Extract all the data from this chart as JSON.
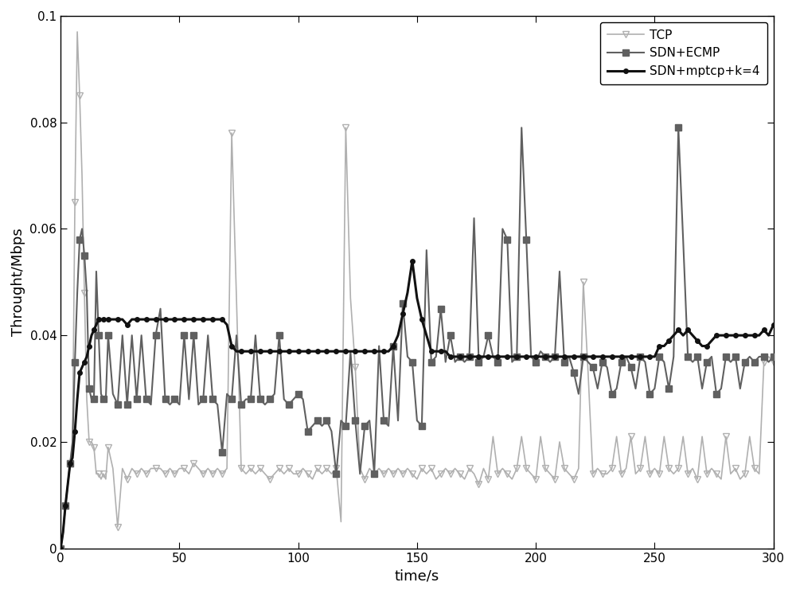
{
  "xlabel": "time/s",
  "ylabel": "Throught/Mbps",
  "xlim": [
    0,
    300
  ],
  "ylim": [
    0,
    0.1
  ],
  "yticks": [
    0,
    0.02,
    0.04,
    0.06,
    0.08,
    0.1
  ],
  "xticks": [
    0,
    50,
    100,
    150,
    200,
    250,
    300
  ],
  "tcp_color": "#b0b0b0",
  "ecmp_color": "#606060",
  "mptcp_color": "#111111",
  "legend_labels": [
    "TCP",
    "SDN+ECMP",
    "SDN+mptcp+k=4"
  ],
  "tcp_t": [
    0,
    1,
    2,
    3,
    4,
    5,
    6,
    7,
    8,
    9,
    10,
    11,
    12,
    13,
    14,
    15,
    16,
    17,
    18,
    19,
    20,
    22,
    24,
    26,
    28,
    30,
    32,
    34,
    36,
    38,
    40,
    42,
    44,
    46,
    48,
    50,
    52,
    54,
    56,
    58,
    60,
    62,
    64,
    66,
    68,
    70,
    72,
    74,
    76,
    78,
    80,
    82,
    84,
    86,
    88,
    90,
    92,
    94,
    96,
    98,
    100,
    102,
    104,
    106,
    108,
    110,
    112,
    114,
    116,
    118,
    120,
    122,
    124,
    126,
    128,
    130,
    132,
    134,
    136,
    138,
    140,
    142,
    144,
    146,
    148,
    150,
    152,
    154,
    156,
    158,
    160,
    162,
    164,
    166,
    168,
    170,
    172,
    174,
    176,
    178,
    180,
    182,
    184,
    186,
    188,
    190,
    192,
    194,
    196,
    198,
    200,
    202,
    204,
    206,
    208,
    210,
    212,
    214,
    216,
    218,
    220,
    222,
    224,
    226,
    228,
    230,
    232,
    234,
    236,
    238,
    240,
    242,
    244,
    246,
    248,
    250,
    252,
    254,
    256,
    258,
    260,
    262,
    264,
    266,
    268,
    270,
    272,
    274,
    276,
    278,
    280,
    282,
    284,
    286,
    288,
    290,
    292,
    294,
    296,
    298,
    300
  ],
  "tcp_y": [
    0,
    0.003,
    0.008,
    0.012,
    0.016,
    0.02,
    0.065,
    0.097,
    0.085,
    0.07,
    0.048,
    0.028,
    0.02,
    0.02,
    0.019,
    0.014,
    0.014,
    0.013,
    0.014,
    0.013,
    0.019,
    0.015,
    0.004,
    0.015,
    0.013,
    0.015,
    0.014,
    0.015,
    0.014,
    0.015,
    0.015,
    0.015,
    0.014,
    0.015,
    0.014,
    0.015,
    0.015,
    0.014,
    0.016,
    0.015,
    0.014,
    0.015,
    0.014,
    0.015,
    0.014,
    0.015,
    0.078,
    0.047,
    0.015,
    0.014,
    0.015,
    0.014,
    0.015,
    0.014,
    0.013,
    0.014,
    0.015,
    0.014,
    0.015,
    0.014,
    0.014,
    0.015,
    0.014,
    0.013,
    0.015,
    0.014,
    0.015,
    0.014,
    0.015,
    0.005,
    0.079,
    0.047,
    0.034,
    0.015,
    0.013,
    0.015,
    0.014,
    0.015,
    0.014,
    0.015,
    0.014,
    0.015,
    0.014,
    0.015,
    0.014,
    0.013,
    0.015,
    0.014,
    0.015,
    0.013,
    0.014,
    0.015,
    0.014,
    0.015,
    0.014,
    0.013,
    0.015,
    0.014,
    0.012,
    0.015,
    0.013,
    0.021,
    0.014,
    0.015,
    0.014,
    0.013,
    0.015,
    0.021,
    0.015,
    0.014,
    0.013,
    0.021,
    0.015,
    0.014,
    0.013,
    0.02,
    0.015,
    0.014,
    0.013,
    0.015,
    0.05,
    0.033,
    0.014,
    0.015,
    0.014,
    0.014,
    0.015,
    0.021,
    0.014,
    0.015,
    0.021,
    0.014,
    0.015,
    0.021,
    0.014,
    0.015,
    0.014,
    0.021,
    0.015,
    0.014,
    0.015,
    0.021,
    0.014,
    0.015,
    0.013,
    0.021,
    0.014,
    0.015,
    0.014,
    0.013,
    0.021,
    0.014,
    0.015,
    0.013,
    0.014,
    0.021,
    0.015,
    0.014,
    0.035,
    0.036,
    0.035
  ],
  "ecmp_t": [
    0,
    1,
    2,
    3,
    4,
    5,
    6,
    7,
    8,
    9,
    10,
    11,
    12,
    13,
    14,
    15,
    16,
    17,
    18,
    19,
    20,
    22,
    24,
    26,
    28,
    30,
    32,
    34,
    36,
    38,
    40,
    42,
    44,
    46,
    48,
    50,
    52,
    54,
    56,
    58,
    60,
    62,
    64,
    66,
    68,
    70,
    72,
    74,
    76,
    78,
    80,
    82,
    84,
    86,
    88,
    90,
    92,
    94,
    96,
    98,
    100,
    102,
    104,
    106,
    108,
    110,
    112,
    114,
    116,
    118,
    120,
    122,
    124,
    126,
    128,
    130,
    132,
    134,
    136,
    138,
    140,
    142,
    144,
    146,
    148,
    150,
    152,
    154,
    156,
    158,
    160,
    162,
    164,
    166,
    168,
    170,
    172,
    174,
    176,
    178,
    180,
    182,
    184,
    186,
    188,
    190,
    192,
    194,
    196,
    198,
    200,
    202,
    204,
    206,
    208,
    210,
    212,
    214,
    216,
    218,
    220,
    222,
    224,
    226,
    228,
    230,
    232,
    234,
    236,
    238,
    240,
    242,
    244,
    246,
    248,
    250,
    252,
    254,
    256,
    258,
    260,
    262,
    264,
    266,
    268,
    270,
    272,
    274,
    276,
    278,
    280,
    282,
    284,
    286,
    288,
    290,
    292,
    294,
    296,
    298,
    300
  ],
  "ecmp_y": [
    0,
    0.003,
    0.008,
    0.012,
    0.016,
    0.02,
    0.035,
    0.048,
    0.058,
    0.06,
    0.055,
    0.048,
    0.03,
    0.028,
    0.028,
    0.052,
    0.04,
    0.029,
    0.028,
    0.028,
    0.04,
    0.029,
    0.027,
    0.04,
    0.027,
    0.04,
    0.028,
    0.04,
    0.028,
    0.027,
    0.04,
    0.045,
    0.028,
    0.027,
    0.028,
    0.027,
    0.04,
    0.028,
    0.04,
    0.027,
    0.028,
    0.04,
    0.028,
    0.027,
    0.018,
    0.029,
    0.028,
    0.04,
    0.027,
    0.028,
    0.028,
    0.04,
    0.028,
    0.027,
    0.028,
    0.029,
    0.04,
    0.028,
    0.027,
    0.028,
    0.029,
    0.028,
    0.022,
    0.023,
    0.024,
    0.023,
    0.024,
    0.022,
    0.014,
    0.024,
    0.023,
    0.037,
    0.024,
    0.014,
    0.023,
    0.024,
    0.014,
    0.038,
    0.024,
    0.023,
    0.038,
    0.024,
    0.046,
    0.036,
    0.035,
    0.024,
    0.023,
    0.056,
    0.035,
    0.036,
    0.045,
    0.035,
    0.04,
    0.035,
    0.036,
    0.035,
    0.036,
    0.062,
    0.035,
    0.036,
    0.04,
    0.036,
    0.035,
    0.06,
    0.058,
    0.035,
    0.036,
    0.079,
    0.058,
    0.036,
    0.035,
    0.037,
    0.036,
    0.035,
    0.036,
    0.052,
    0.035,
    0.036,
    0.033,
    0.029,
    0.036,
    0.035,
    0.034,
    0.03,
    0.035,
    0.034,
    0.029,
    0.03,
    0.035,
    0.036,
    0.034,
    0.03,
    0.036,
    0.035,
    0.029,
    0.03,
    0.036,
    0.035,
    0.03,
    0.036,
    0.079,
    0.058,
    0.036,
    0.035,
    0.036,
    0.03,
    0.035,
    0.036,
    0.029,
    0.03,
    0.036,
    0.035,
    0.036,
    0.03,
    0.035,
    0.036,
    0.035,
    0.036,
    0.036,
    0.035,
    0.036
  ],
  "mptcp_t": [
    0,
    1,
    2,
    3,
    4,
    5,
    6,
    7,
    8,
    9,
    10,
    11,
    12,
    13,
    14,
    15,
    16,
    17,
    18,
    19,
    20,
    22,
    24,
    26,
    28,
    30,
    32,
    34,
    36,
    38,
    40,
    42,
    44,
    46,
    48,
    50,
    52,
    54,
    56,
    58,
    60,
    62,
    64,
    66,
    68,
    70,
    72,
    74,
    76,
    78,
    80,
    82,
    84,
    86,
    88,
    90,
    92,
    94,
    96,
    98,
    100,
    102,
    104,
    106,
    108,
    110,
    112,
    114,
    116,
    118,
    120,
    122,
    124,
    126,
    128,
    130,
    132,
    134,
    136,
    138,
    140,
    142,
    144,
    146,
    148,
    150,
    152,
    154,
    156,
    158,
    160,
    162,
    164,
    166,
    168,
    170,
    172,
    174,
    176,
    178,
    180,
    182,
    184,
    186,
    188,
    190,
    192,
    194,
    196,
    198,
    200,
    202,
    204,
    206,
    208,
    210,
    212,
    214,
    216,
    218,
    220,
    222,
    224,
    226,
    228,
    230,
    232,
    234,
    236,
    238,
    240,
    242,
    244,
    246,
    248,
    250,
    252,
    254,
    256,
    258,
    260,
    262,
    264,
    266,
    268,
    270,
    272,
    274,
    276,
    278,
    280,
    282,
    284,
    286,
    288,
    290,
    292,
    294,
    296,
    298,
    300
  ],
  "mptcp_y": [
    0,
    0.003,
    0.008,
    0.012,
    0.016,
    0.017,
    0.022,
    0.028,
    0.033,
    0.034,
    0.035,
    0.036,
    0.038,
    0.04,
    0.041,
    0.042,
    0.043,
    0.043,
    0.043,
    0.043,
    0.043,
    0.043,
    0.043,
    0.043,
    0.042,
    0.043,
    0.043,
    0.043,
    0.043,
    0.043,
    0.043,
    0.043,
    0.043,
    0.043,
    0.043,
    0.043,
    0.043,
    0.043,
    0.043,
    0.043,
    0.043,
    0.043,
    0.043,
    0.043,
    0.043,
    0.042,
    0.038,
    0.037,
    0.037,
    0.037,
    0.037,
    0.037,
    0.037,
    0.037,
    0.037,
    0.037,
    0.037,
    0.037,
    0.037,
    0.037,
    0.037,
    0.037,
    0.037,
    0.037,
    0.037,
    0.037,
    0.037,
    0.037,
    0.037,
    0.037,
    0.037,
    0.037,
    0.037,
    0.037,
    0.037,
    0.037,
    0.037,
    0.037,
    0.037,
    0.037,
    0.038,
    0.04,
    0.044,
    0.048,
    0.054,
    0.047,
    0.043,
    0.04,
    0.037,
    0.037,
    0.037,
    0.037,
    0.036,
    0.036,
    0.036,
    0.036,
    0.036,
    0.036,
    0.036,
    0.036,
    0.036,
    0.036,
    0.036,
    0.036,
    0.036,
    0.036,
    0.036,
    0.036,
    0.036,
    0.036,
    0.036,
    0.036,
    0.036,
    0.036,
    0.036,
    0.036,
    0.036,
    0.036,
    0.036,
    0.036,
    0.036,
    0.036,
    0.036,
    0.036,
    0.036,
    0.036,
    0.036,
    0.036,
    0.036,
    0.036,
    0.036,
    0.036,
    0.036,
    0.036,
    0.036,
    0.036,
    0.038,
    0.038,
    0.039,
    0.04,
    0.041,
    0.04,
    0.041,
    0.04,
    0.039,
    0.038,
    0.038,
    0.039,
    0.04,
    0.04,
    0.04,
    0.04,
    0.04,
    0.04,
    0.04,
    0.04,
    0.04,
    0.04,
    0.041,
    0.04,
    0.042
  ]
}
